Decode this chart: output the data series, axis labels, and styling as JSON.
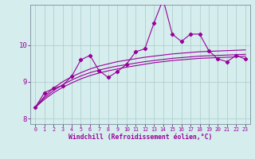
{
  "x": [
    0,
    1,
    2,
    3,
    4,
    5,
    6,
    7,
    8,
    9,
    10,
    11,
    12,
    13,
    14,
    15,
    16,
    17,
    18,
    19,
    20,
    21,
    22,
    23
  ],
  "main_line": [
    8.3,
    8.7,
    8.82,
    8.9,
    9.15,
    9.6,
    9.72,
    9.3,
    9.12,
    9.28,
    9.48,
    9.82,
    9.9,
    10.6,
    11.25,
    10.3,
    10.1,
    10.3,
    10.3,
    9.85,
    9.62,
    9.55,
    9.72,
    9.62
  ],
  "smooth1": [
    8.3,
    8.52,
    8.7,
    8.85,
    8.97,
    9.08,
    9.17,
    9.24,
    9.3,
    9.35,
    9.4,
    9.44,
    9.48,
    9.52,
    9.55,
    9.58,
    9.6,
    9.62,
    9.64,
    9.65,
    9.66,
    9.67,
    9.68,
    9.7
  ],
  "smooth2": [
    8.3,
    8.56,
    8.76,
    8.92,
    9.05,
    9.16,
    9.25,
    9.32,
    9.38,
    9.43,
    9.47,
    9.51,
    9.55,
    9.58,
    9.61,
    9.64,
    9.66,
    9.68,
    9.7,
    9.71,
    9.72,
    9.73,
    9.74,
    9.75
  ],
  "smooth3": [
    8.3,
    8.6,
    8.83,
    9.0,
    9.14,
    9.25,
    9.35,
    9.43,
    9.49,
    9.55,
    9.59,
    9.63,
    9.67,
    9.7,
    9.73,
    9.76,
    9.78,
    9.8,
    9.82,
    9.83,
    9.84,
    9.85,
    9.86,
    9.87
  ],
  "line_color": "#990099",
  "bg_color": "#d5eded",
  "grid_color": "#b0d0d0",
  "ylabel_ticks": [
    8,
    9,
    10
  ],
  "xlabel": "Windchill (Refroidissement éolien,°C)",
  "xlim": [
    -0.5,
    23.5
  ],
  "ylim": [
    7.85,
    11.1
  ]
}
